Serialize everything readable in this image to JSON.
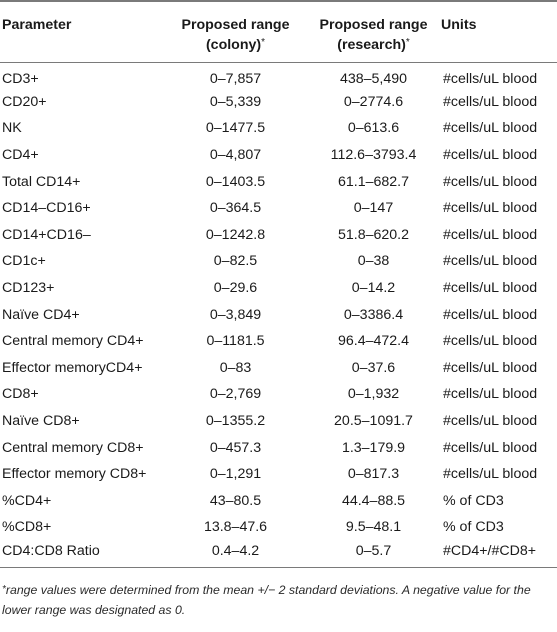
{
  "header": {
    "parameter": "Parameter",
    "colony_line1": "Proposed range",
    "colony_line2": "(colony)",
    "research_line1": "Proposed range",
    "research_line2": "(research)",
    "asterisk": "*",
    "units": "Units"
  },
  "rows": [
    {
      "parameter": "CD3+",
      "colony": "0–7,857",
      "research": "438–5,490",
      "units": "#cells/uL blood"
    },
    {
      "parameter": "CD20+",
      "colony": "0–5,339",
      "research": "0–2774.6",
      "units": "#cells/uL blood"
    },
    {
      "parameter": "NK",
      "colony": "0–1477.5",
      "research": "0–613.6",
      "units": "#cells/uL blood"
    },
    {
      "parameter": "CD4+",
      "colony": "0–4,807",
      "research": "112.6–3793.4",
      "units": "#cells/uL blood"
    },
    {
      "parameter": "Total CD14+",
      "colony": "0–1403.5",
      "research": "61.1–682.7",
      "units": "#cells/uL blood"
    },
    {
      "parameter": "CD14–CD16+",
      "colony": "0–364.5",
      "research": "0–147",
      "units": "#cells/uL blood"
    },
    {
      "parameter": "CD14+CD16–",
      "colony": "0–1242.8",
      "research": "51.8–620.2",
      "units": "#cells/uL blood"
    },
    {
      "parameter": "CD1c+",
      "colony": "0–82.5",
      "research": "0–38",
      "units": "#cells/uL blood"
    },
    {
      "parameter": "CD123+",
      "colony": "0–29.6",
      "research": "0–14.2",
      "units": "#cells/uL blood"
    },
    {
      "parameter": "Naïve CD4+",
      "colony": "0–3,849",
      "research": "0–3386.4",
      "units": "#cells/uL blood"
    },
    {
      "parameter": "Central memory CD4+",
      "colony": "0–1181.5",
      "research": "96.4–472.4",
      "units": "#cells/uL blood"
    },
    {
      "parameter": "Effector memoryCD4+",
      "colony": "0–83",
      "research": "0–37.6",
      "units": "#cells/uL blood"
    },
    {
      "parameter": "CD8+",
      "colony": "0–2,769",
      "research": "0–1,932",
      "units": "#cells/uL blood"
    },
    {
      "parameter": "Naïve CD8+",
      "colony": "0–1355.2",
      "research": "20.5–1091.7",
      "units": "#cells/uL blood"
    },
    {
      "parameter": "Central memory CD8+",
      "colony": "0–457.3",
      "research": "1.3–179.9",
      "units": "#cells/uL blood"
    },
    {
      "parameter": "Effector memory CD8+",
      "colony": "0–1,291",
      "research": "0–817.3",
      "units": "#cells/uL blood"
    },
    {
      "parameter": "%CD4+",
      "colony": "43–80.5",
      "research": "44.4–88.5",
      "units": "% of CD3"
    },
    {
      "parameter": "%CD8+",
      "colony": "13.8–47.6",
      "research": "9.5–48.1",
      "units": "% of CD3"
    },
    {
      "parameter": "CD4:CD8 Ratio",
      "colony": "0.4–4.2",
      "research": "0–5.7",
      "units": "#CD4+/#CD8+"
    }
  ],
  "footnote": {
    "asterisk": "*",
    "text": "range values were determined from the mean +/− 2 standard deviations. A negative value for the lower range was designated as 0."
  }
}
